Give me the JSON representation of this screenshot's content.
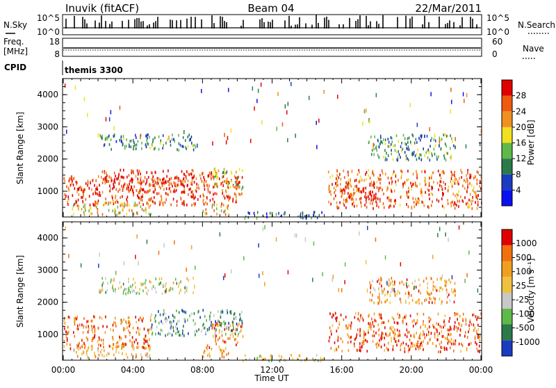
{
  "header": {
    "radar": "Inuvik (fitACF)",
    "beam": "Beam 04",
    "date": "22/Mar/2011"
  },
  "strips": {
    "nsky_label": "N.Sky",
    "nsky_ticks": [
      "10^5",
      "10^0"
    ],
    "nsearch_label": "N.Search",
    "nsearch_ticks": [
      "10^5",
      "10^0"
    ],
    "freq_label": "Freq.",
    "freq_unit": "[MHz]",
    "freq_ticks": [
      "18",
      "8"
    ],
    "nave_label": "Nave",
    "nave_ticks": [
      "60",
      "0"
    ],
    "cpid_label": "CPID",
    "cpid_value": "themis 3300"
  },
  "chart_data": [
    {
      "type": "heatmap",
      "name": "power",
      "ylabel": "Slant Range [km]",
      "yticks": [
        "4000",
        "3000",
        "2000",
        "1000"
      ],
      "ytick_values": [
        4000,
        3000,
        2000,
        1000
      ],
      "ylim": [
        200,
        4500
      ],
      "xlim": [
        0,
        24
      ],
      "colorbar_label": "Power [dB]",
      "colorbar_ticks": [
        "28",
        "24",
        "20",
        "16",
        "12",
        "8",
        "4"
      ],
      "colorbar_colors": [
        "#0a10f0",
        "#1a3cc0",
        "#2c7a4a",
        "#5fb84a",
        "#f0e020",
        "#f09020",
        "#f05a10",
        "#e00000"
      ],
      "regions": [
        {
          "t0": 0.0,
          "t1": 10.3,
          "r0": 600,
          "r1": 1500,
          "level": 0.85
        },
        {
          "t0": 2.2,
          "t1": 8.5,
          "r0": 1000,
          "r1": 1700,
          "level": 0.9
        },
        {
          "t0": 8.5,
          "t1": 10.3,
          "r0": 1100,
          "r1": 1800,
          "level": 0.55
        },
        {
          "t0": 0.5,
          "t1": 5.0,
          "r0": 300,
          "r1": 700,
          "level": 0.6
        },
        {
          "t0": 8.0,
          "t1": 9.5,
          "r0": 300,
          "r1": 700,
          "level": 0.6
        },
        {
          "t0": 2.0,
          "t1": 7.5,
          "r0": 2300,
          "r1": 2800,
          "level": 0.3
        },
        {
          "t0": 15.2,
          "t1": 24.0,
          "r0": 500,
          "r1": 1700,
          "level": 0.8
        },
        {
          "t0": 16.0,
          "t1": 18.0,
          "r0": 600,
          "r1": 1300,
          "level": 0.95
        },
        {
          "t0": 17.5,
          "t1": 22.5,
          "r0": 2000,
          "r1": 2800,
          "level": 0.35
        },
        {
          "t0": 10.3,
          "t1": 15.0,
          "r0": 200,
          "r1": 400,
          "level": 0.25
        }
      ]
    },
    {
      "type": "heatmap",
      "name": "velocity",
      "ylabel": "Slant Range [km]",
      "yticks": [
        "4000",
        "3000",
        "2000",
        "1000"
      ],
      "ytick_values": [
        4000,
        3000,
        2000,
        1000
      ],
      "ylim": [
        200,
        4500
      ],
      "xlim": [
        0,
        24
      ],
      "xticks": [
        "00:00",
        "04:00",
        "08:00",
        "12:00",
        "16:00",
        "20:00",
        "00:00"
      ],
      "xtick_values": [
        0,
        4,
        8,
        12,
        16,
        20,
        24
      ],
      "xlabel": "Time UT",
      "colorbar_label": "Velocity [m s⁻¹]",
      "colorbar_ticks": [
        "1000",
        "500",
        "100",
        "25",
        "-25",
        "-100",
        "-500",
        "-1000"
      ],
      "colorbar_colors": [
        "#1a3cc0",
        "#2c7a4a",
        "#5fb84a",
        "#c8c8c8",
        "#f0c040",
        "#f0a020",
        "#f07010",
        "#e00000"
      ],
      "regions": [
        {
          "t0": 0.0,
          "t1": 5.0,
          "r0": 600,
          "r1": 1600,
          "level": 0.8
        },
        {
          "t0": 5.0,
          "t1": 10.3,
          "r0": 1000,
          "r1": 1800,
          "level": 0.25
        },
        {
          "t0": 8.5,
          "t1": 10.3,
          "r0": 700,
          "r1": 1400,
          "level": 0.75
        },
        {
          "t0": 0.5,
          "t1": 5.0,
          "r0": 300,
          "r1": 700,
          "level": 0.6
        },
        {
          "t0": 8.0,
          "t1": 9.5,
          "r0": 300,
          "r1": 700,
          "level": 0.7
        },
        {
          "t0": 2.0,
          "t1": 7.5,
          "r0": 2300,
          "r1": 2800,
          "level": 0.45
        },
        {
          "t0": 15.2,
          "t1": 24.0,
          "r0": 500,
          "r1": 1700,
          "level": 0.82
        },
        {
          "t0": 17.5,
          "t1": 22.5,
          "r0": 2000,
          "r1": 2800,
          "level": 0.7
        },
        {
          "t0": 10.3,
          "t1": 15.0,
          "r0": 200,
          "r1": 400,
          "level": 0.5
        }
      ]
    }
  ]
}
